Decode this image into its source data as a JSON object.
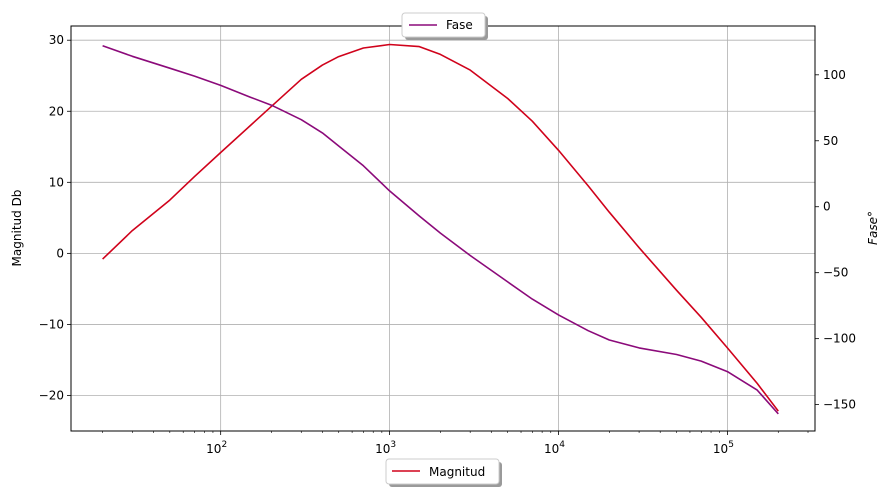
{
  "chart_data": {
    "type": "line",
    "x_scale": "log",
    "xlim": [
      13,
      330000
    ],
    "grid": true,
    "x_ticks": [
      {
        "value": 100,
        "base": "10",
        "exp": "2"
      },
      {
        "value": 1000,
        "base": "10",
        "exp": "3"
      },
      {
        "value": 10000,
        "base": "10",
        "exp": "4"
      },
      {
        "value": 100000,
        "base": "10",
        "exp": "5"
      }
    ],
    "left_axis": {
      "label": "Magnitud Db",
      "ylim": [
        -25,
        32
      ],
      "ticks": [
        30,
        20,
        10,
        0,
        -10,
        -20
      ],
      "tick_labels": [
        "30",
        "20",
        "10",
        "0",
        "−10",
        "−20"
      ]
    },
    "right_axis": {
      "label": "Fase°",
      "ylim": [
        -170,
        137
      ],
      "ticks": [
        100,
        50,
        0,
        -50,
        -100,
        -150
      ],
      "tick_labels": [
        "100",
        "50",
        "0",
        "−50",
        "−100",
        "−150"
      ]
    },
    "series": [
      {
        "name": "Magnitud",
        "axis": "left",
        "color": "#d0021b",
        "legend_position": "bottom-center",
        "x": [
          20,
          30,
          50,
          70,
          100,
          150,
          200,
          300,
          400,
          500,
          700,
          1000,
          1500,
          2000,
          3000,
          5000,
          7000,
          10000,
          15000,
          20000,
          30000,
          50000,
          70000,
          100000,
          150000,
          200000
        ],
        "y": [
          -0.8,
          3.2,
          7.5,
          10.8,
          14.2,
          18.0,
          20.7,
          24.5,
          26.5,
          27.7,
          28.9,
          29.4,
          29.1,
          28.0,
          25.8,
          21.8,
          18.6,
          14.5,
          9.5,
          5.8,
          0.8,
          -5.2,
          -9.0,
          -13.3,
          -18.3,
          -22.2
        ]
      },
      {
        "name": "Fase",
        "axis": "right",
        "color": "#8b0a7a",
        "legend_position": "top-center",
        "x": [
          20,
          30,
          50,
          70,
          100,
          150,
          200,
          300,
          400,
          500,
          700,
          1000,
          1500,
          2000,
          3000,
          5000,
          7000,
          10000,
          15000,
          20000,
          30000,
          50000,
          70000,
          100000,
          150000,
          200000
        ],
        "y": [
          122,
          114,
          105,
          99,
          92,
          83,
          77,
          66,
          56,
          46,
          31,
          12,
          -7,
          -20,
          -37,
          -57,
          -70,
          -82,
          -94,
          -101,
          -107,
          -112,
          -117,
          -125,
          -139,
          -157
        ]
      }
    ]
  }
}
